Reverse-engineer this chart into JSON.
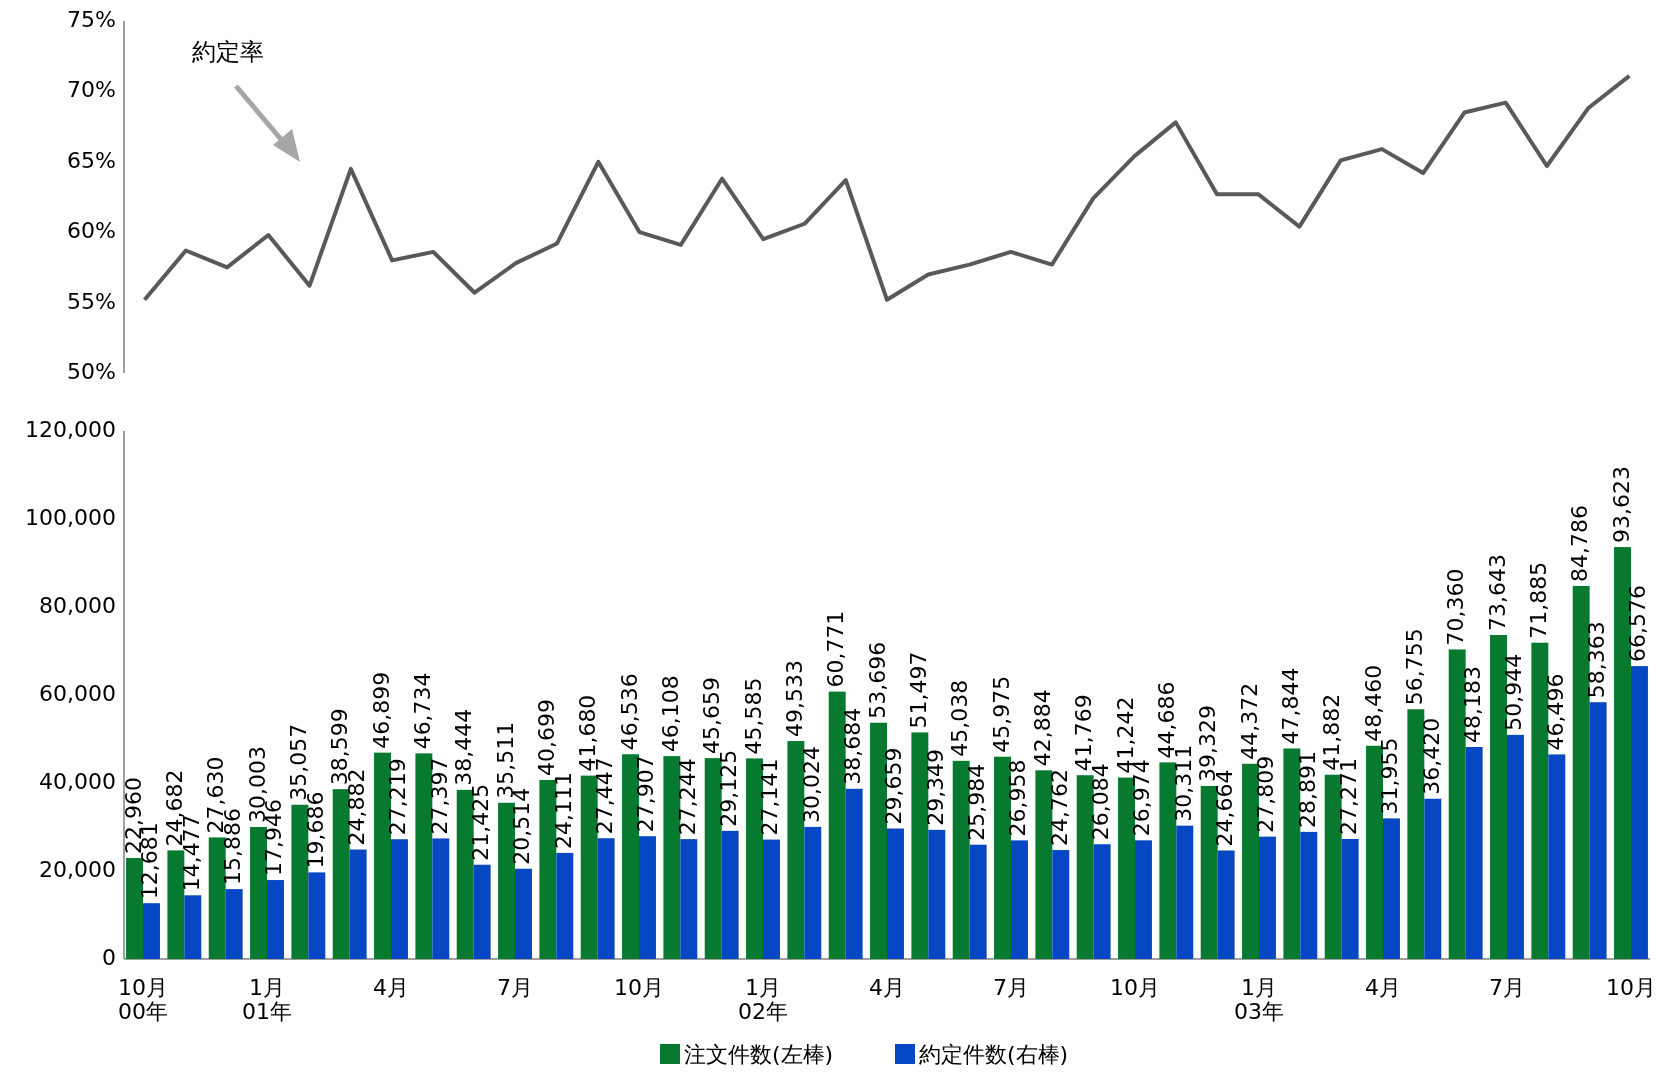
{
  "chart_data": [
    {
      "type": "line",
      "categories": [
        null,
        null,
        null,
        null,
        null,
        null,
        null,
        null,
        null,
        null,
        null,
        null,
        null,
        null,
        null,
        null,
        null,
        null,
        null,
        null,
        null,
        null,
        null,
        null,
        null,
        null,
        null,
        null,
        null,
        null,
        null,
        null,
        null,
        null,
        null,
        null,
        null
      ],
      "series": [
        {
          "name": "約定率",
          "color": "#595959",
          "values": [
            55.2,
            58.7,
            57.5,
            59.8,
            56.2,
            64.5,
            58.0,
            58.6,
            55.7,
            57.8,
            59.2,
            65.0,
            60.0,
            59.1,
            63.8,
            59.5,
            60.6,
            63.7,
            55.2,
            57.0,
            57.7,
            58.6,
            57.7,
            62.4,
            65.4,
            67.8,
            62.7,
            62.7,
            60.4,
            65.1,
            65.9,
            64.2,
            68.5,
            69.2,
            64.7,
            68.8,
            71.1
          ]
        }
      ],
      "ylim": [
        50,
        75
      ],
      "yticks": [
        {
          "value": 50,
          "label": "50%"
        },
        {
          "value": 55,
          "label": "55%"
        },
        {
          "value": 60,
          "label": "60%"
        },
        {
          "value": 65,
          "label": "65%"
        },
        {
          "value": 70,
          "label": "70%"
        },
        {
          "value": 75,
          "label": "75%"
        }
      ],
      "tick_labels": "y",
      "grid": false,
      "legend": false,
      "marker": "none",
      "line_style": "solid"
    },
    {
      "type": "bar",
      "categories": [
        "10月\n00年",
        null,
        null,
        "1月\n01年",
        null,
        null,
        "4月",
        null,
        null,
        "7月",
        null,
        null,
        "10月",
        null,
        null,
        "1月\n02年",
        null,
        null,
        "4月",
        null,
        null,
        "7月",
        null,
        null,
        "10月",
        null,
        null,
        "1月\n03年",
        null,
        null,
        "4月",
        null,
        null,
        "7月",
        null,
        null,
        "10月"
      ],
      "series": [
        {
          "name": "注文件数(左棒)",
          "color": "#077a30",
          "values": [
            22960,
            24682,
            27630,
            30003,
            35057,
            38599,
            46899,
            46734,
            38444,
            35511,
            40699,
            41680,
            46536,
            46108,
            45659,
            45585,
            49533,
            60771,
            53696,
            51497,
            45038,
            45975,
            42884,
            41769,
            41242,
            44686,
            39329,
            44372,
            47844,
            41882,
            48460,
            56755,
            70360,
            73643,
            71885,
            84786,
            93623
          ],
          "value_labels": [
            "22,960",
            "24,682",
            "27,630",
            "30,003",
            "35,057",
            "38,599",
            "46,899",
            "46,734",
            "38,444",
            "35,511",
            "40,699",
            "41,680",
            "46,536",
            "46,108",
            "45,659",
            "45,585",
            "49,533",
            "60,771",
            "53,696",
            "51,497",
            "45,038",
            "45,975",
            "42,884",
            "41,769",
            "41,242",
            "44,686",
            "39,329",
            "44,372",
            "47,844",
            "41,882",
            "48,460",
            "56,755",
            "70,360",
            "73,643",
            "71,885",
            "84,786",
            "93,623"
          ]
        },
        {
          "name": "約定件数(右棒)",
          "color": "#0847c4",
          "values": [
            12681,
            14477,
            15886,
            17946,
            19686,
            24882,
            27219,
            27397,
            21425,
            20514,
            24111,
            27447,
            27907,
            27244,
            29125,
            27141,
            30024,
            38684,
            29659,
            29349,
            25984,
            26958,
            24762,
            26084,
            26974,
            30311,
            24664,
            27809,
            28891,
            27271,
            31955,
            36420,
            48183,
            50944,
            46496,
            58363,
            66576
          ],
          "value_labels": [
            "12,681",
            "14,477",
            "15,886",
            "17,946",
            "19,686",
            "24,882",
            "27,219",
            "27,397",
            "21,425",
            "20,514",
            "24,111",
            "27,447",
            "27,907",
            "27,244",
            "29,125",
            "27,141",
            "30,024",
            "38,684",
            "29,659",
            "29,349",
            "25,984",
            "26,958",
            "24,762",
            "26,084",
            "26,974",
            "30,311",
            "24,664",
            "27,809",
            "28,891",
            "27,271",
            "31,955",
            "36,420",
            "48,183",
            "50,944",
            "46,496",
            "58,363",
            "66,576"
          ]
        }
      ],
      "ylim": [
        0,
        120000
      ],
      "yticks": [
        0,
        {
          "value": 20000,
          "label": "20,000"
        },
        {
          "value": 40000,
          "label": "40,000"
        },
        {
          "value": 60000,
          "label": "60,000"
        },
        {
          "value": 80000,
          "label": "80,000"
        },
        {
          "value": 100000,
          "label": "100,000"
        },
        {
          "value": 120000,
          "label": "120,000"
        }
      ],
      "grid": false,
      "legend": "bottom"
    }
  ]
}
